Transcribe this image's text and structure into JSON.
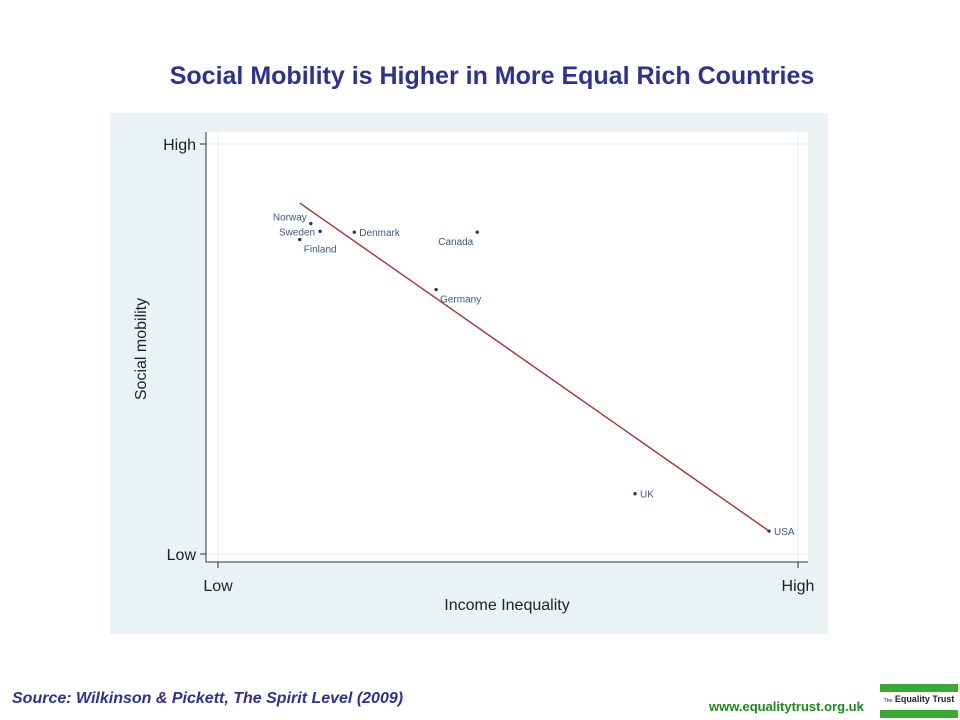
{
  "title": "Social Mobility is Higher in More Equal Rich Countries",
  "source": "Source: Wilkinson & Pickett, The Spirit Level (2009)",
  "website": "www.equalitytrust.org.uk",
  "logo": {
    "prefix": "The",
    "name": "Equality Trust"
  },
  "colors": {
    "title": "#2e3192",
    "panel_background": "#eaf2f3",
    "point": "#1f3b5a",
    "point_label": "#3d5a80",
    "trend_line": "#a83232",
    "website": "#1a8a1a",
    "logo_band": "#3aaa35"
  },
  "chart_data": {
    "type": "scatter",
    "title": "Social Mobility is Higher in More Equal Rich Countries",
    "xlabel": "Income Inequality",
    "ylabel": "Social mobility",
    "x_ticks": [
      {
        "value": 0,
        "label": "Low"
      },
      {
        "value": 1,
        "label": "High"
      }
    ],
    "y_ticks": [
      {
        "value": 0,
        "label": "Low"
      },
      {
        "value": 1,
        "label": "High"
      }
    ],
    "xlim": [
      0,
      1
    ],
    "ylim": [
      0,
      1
    ],
    "grid": true,
    "legend": "none",
    "points": [
      {
        "label": "Norway",
        "x": 0.16,
        "y": 0.806,
        "label_position": "left-above"
      },
      {
        "label": "Sweden",
        "x": 0.176,
        "y": 0.787,
        "label_position": "left"
      },
      {
        "label": "Finland",
        "x": 0.141,
        "y": 0.767,
        "label_position": "right-below"
      },
      {
        "label": "Denmark",
        "x": 0.235,
        "y": 0.785,
        "label_position": "right"
      },
      {
        "label": "Canada",
        "x": 0.447,
        "y": 0.785,
        "label_position": "left-below"
      },
      {
        "label": "Germany",
        "x": 0.376,
        "y": 0.645,
        "label_position": "right-below"
      },
      {
        "label": "UK",
        "x": 0.719,
        "y": 0.147,
        "label_position": "right"
      },
      {
        "label": "USA",
        "x": 0.95,
        "y": 0.056,
        "label_position": "right"
      }
    ],
    "trend_line": {
      "x": [
        0.141,
        0.95
      ],
      "y": [
        0.856,
        0.056
      ]
    }
  }
}
